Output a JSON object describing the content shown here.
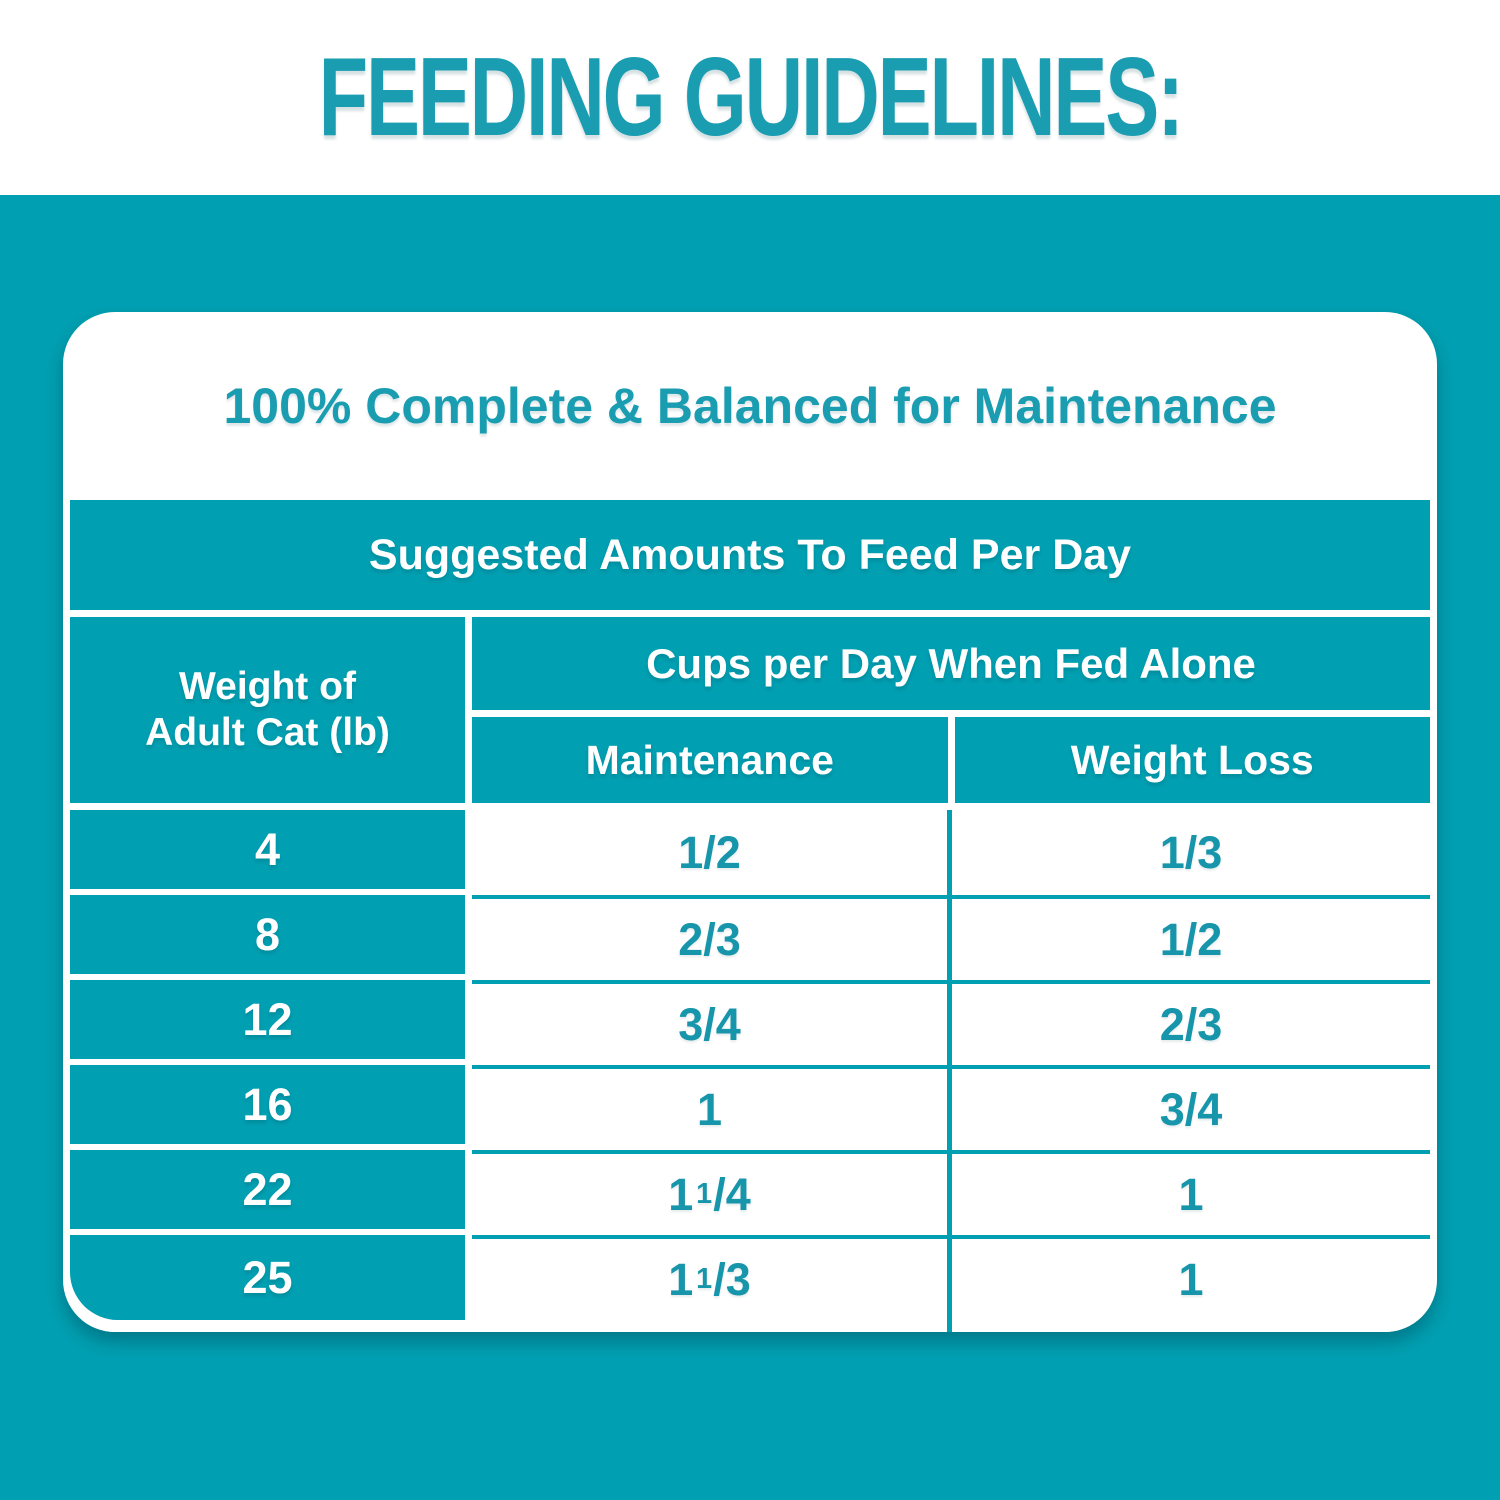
{
  "colors": {
    "teal_bg": "#009FB1",
    "heading_text": "#1A9DB1",
    "cell_text": "#1795AB",
    "white": "#FFFFFF"
  },
  "header": {
    "title": "FEEDING GUIDELINES:"
  },
  "card": {
    "title": "100% Complete & Balanced for Maintenance"
  },
  "table": {
    "caption": "Suggested Amounts To Feed Per Day",
    "weight_header": "Weight of\nAdult Cat (lb)",
    "cups_header": "Cups per Day When Fed Alone",
    "columns": [
      "Maintenance",
      "Weight Loss"
    ],
    "rows": [
      {
        "weight": "4",
        "maintenance": "1/2",
        "weight_loss": "1/3"
      },
      {
        "weight": "8",
        "maintenance": "2/3",
        "weight_loss": "1/2"
      },
      {
        "weight": "12",
        "maintenance": "3/4",
        "weight_loss": "2/3"
      },
      {
        "weight": "16",
        "maintenance": "1",
        "weight_loss": "3/4"
      },
      {
        "weight": "22",
        "maintenance": "1 1/4",
        "weight_loss": "1"
      },
      {
        "weight": "25",
        "maintenance": "1 1/3",
        "weight_loss": "1"
      }
    ]
  },
  "chart_data": {
    "type": "table",
    "title": "FEEDING GUIDELINES:",
    "subtitle": "100% Complete & Balanced for Maintenance",
    "caption": "Suggested Amounts To Feed Per Day",
    "columns": [
      "Weight of Adult Cat (lb)",
      "Cups per Day When Fed Alone — Maintenance",
      "Cups per Day When Fed Alone — Weight Loss"
    ],
    "rows": [
      [
        "4",
        "1/2",
        "1/3"
      ],
      [
        "8",
        "2/3",
        "1/2"
      ],
      [
        "12",
        "3/4",
        "2/3"
      ],
      [
        "16",
        "1",
        "3/4"
      ],
      [
        "22",
        "1 1/4",
        "1"
      ],
      [
        "25",
        "1 1/3",
        "1"
      ]
    ]
  }
}
